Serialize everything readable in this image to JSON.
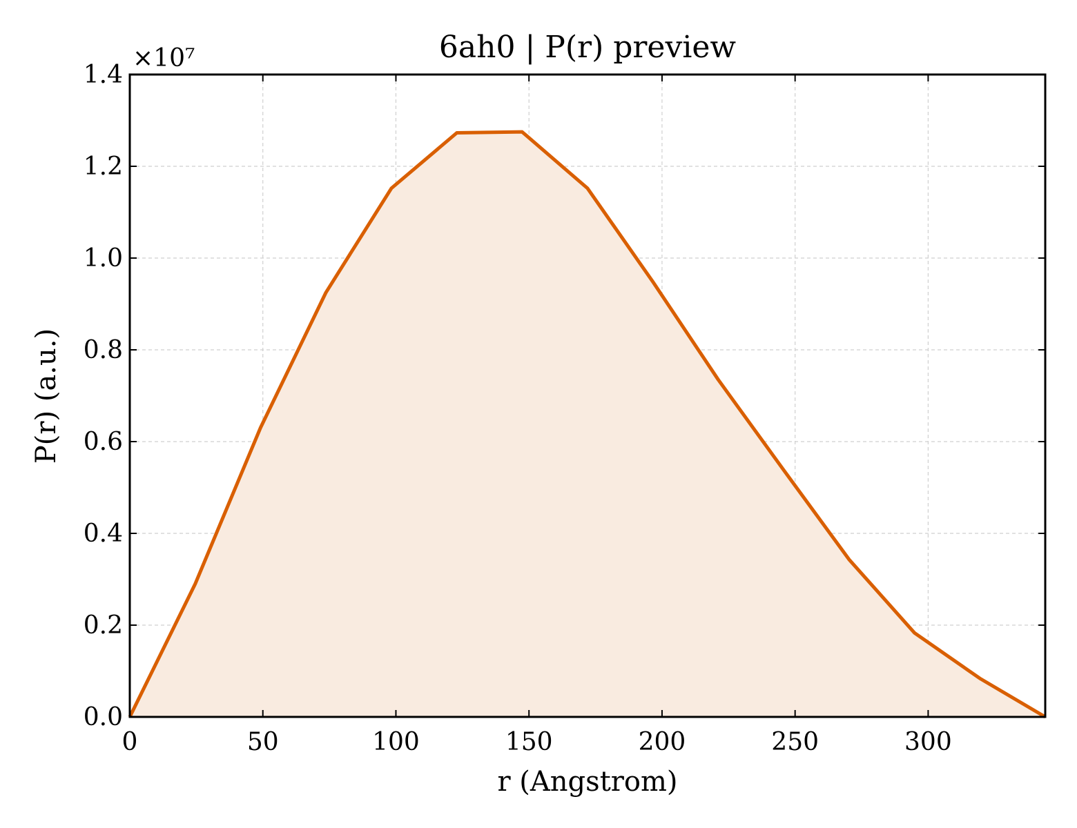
{
  "chart_data": {
    "type": "area",
    "title": "6ah0 | P(r) preview",
    "xlabel": "r (Angstrom)",
    "ylabel": "P(r) (a.u.)",
    "y_offset_label": "×10⁷",
    "xlim": [
      0,
      344
    ],
    "ylim": [
      0,
      1.4
    ],
    "xticks": [
      0,
      50,
      100,
      150,
      200,
      250,
      300
    ],
    "xtick_labels": [
      "0",
      "50",
      "100",
      "150",
      "200",
      "250",
      "300"
    ],
    "yticks": [
      0.0,
      0.2,
      0.4,
      0.6,
      0.8,
      1.0,
      1.2,
      1.4
    ],
    "ytick_labels": [
      "0.0",
      "0.2",
      "0.4",
      "0.6",
      "0.8",
      "1.0",
      "1.2",
      "1.4"
    ],
    "grid": true,
    "series": [
      {
        "x": [
          0,
          24.6,
          49.1,
          73.7,
          98.3,
          122.9,
          147.4,
          172.0,
          196.6,
          221.1,
          245.7,
          270.3,
          294.9,
          319.4,
          344.0
        ],
        "y": [
          0.0,
          0.29,
          0.63,
          0.925,
          1.152,
          1.273,
          1.275,
          1.152,
          0.948,
          0.735,
          0.538,
          0.343,
          0.183,
          0.084,
          0.0
        ],
        "color": "#d95f02",
        "fill_color": "#f9ebe0"
      }
    ]
  }
}
